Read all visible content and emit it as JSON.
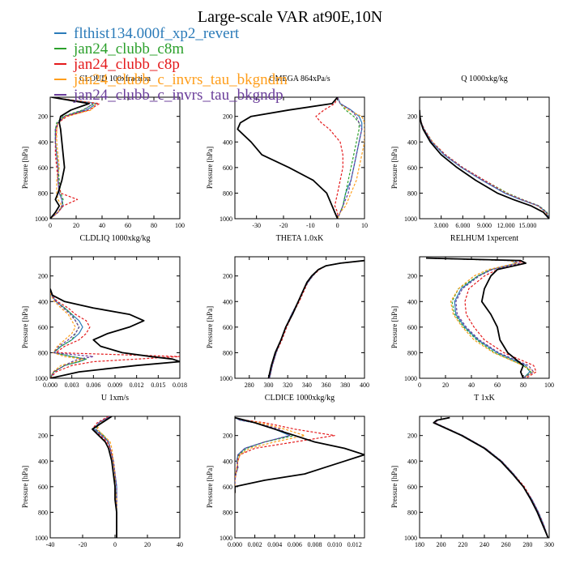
{
  "title": "Large-scale VAR at90E,10N",
  "legend": [
    {
      "name": "flthist134.000f_xp2_revert",
      "color": "#2b7bb9",
      "dash": "solid"
    },
    {
      "name": "jan24_clubb_c8m",
      "color": "#2ca02c",
      "dash": "dash"
    },
    {
      "name": "jan24_clubb_c8p",
      "color": "#e41a1c",
      "dash": "dash"
    },
    {
      "name": "jan24_clubb_c_invrs_tau_bkgndm",
      "color": "#ff9e1b",
      "dash": "dash"
    },
    {
      "name": "jan24_clubb_c_invrs_tau_bkgndp",
      "color": "#6a3d9a",
      "dash": "dash"
    }
  ],
  "reference_series": {
    "color": "#000000",
    "dash": "solid"
  },
  "ylabel": "Pressure [hPa]",
  "yticks": [
    "200",
    "400",
    "600",
    "800",
    "1000"
  ],
  "chart_data": [
    {
      "type": "line",
      "title": "CLOUD  100xfraction",
      "xlim": [
        0,
        100
      ],
      "ylim": [
        50,
        1000
      ],
      "xticks": [
        0,
        20,
        40,
        60,
        80,
        100
      ],
      "xtick_labels": [
        "0",
        "20",
        "40",
        "60",
        "80",
        "100"
      ],
      "pressure": [
        50,
        100,
        150,
        200,
        250,
        300,
        400,
        500,
        600,
        700,
        800,
        850,
        900,
        950,
        1000
      ],
      "reference": [
        1,
        30,
        16,
        8,
        7,
        8,
        9,
        10,
        11,
        9,
        6,
        4,
        7,
        4,
        0
      ],
      "series": [
        [
          1,
          36,
          28,
          11,
          6,
          4,
          4,
          5,
          6,
          6,
          7,
          9,
          10,
          6,
          0
        ],
        [
          1,
          34,
          25,
          10,
          5,
          4,
          4,
          5,
          6,
          7,
          8,
          10,
          9,
          6,
          0
        ],
        [
          1,
          38,
          30,
          13,
          6,
          5,
          4,
          4,
          5,
          6,
          8,
          21,
          10,
          6,
          0
        ],
        [
          1,
          35,
          32,
          12,
          6,
          5,
          5,
          6,
          7,
          5,
          5,
          6,
          9,
          6,
          0
        ],
        [
          1,
          33,
          26,
          11,
          6,
          4,
          4,
          5,
          6,
          6,
          7,
          9,
          9,
          6,
          0
        ]
      ]
    },
    {
      "type": "line",
      "title": "OMEGA  864xPa/s",
      "xlim": [
        -38,
        10
      ],
      "ylim": [
        50,
        1000
      ],
      "xticks": [
        -30,
        -20,
        -10,
        0,
        10
      ],
      "xtick_labels": [
        "-30",
        "-20",
        "-10",
        "0",
        "10"
      ],
      "pressure": [
        50,
        100,
        150,
        200,
        250,
        300,
        400,
        500,
        600,
        700,
        800,
        900,
        950,
        1000
      ],
      "reference": [
        0,
        -2,
        -18,
        -32,
        -36,
        -37,
        -32,
        -28,
        -18,
        -9,
        -4,
        -2,
        -1,
        0
      ],
      "series": [
        [
          0,
          1,
          5,
          8,
          9,
          9,
          8,
          7,
          6,
          5,
          3,
          2,
          1,
          0
        ],
        [
          0,
          1,
          3,
          6,
          8,
          8,
          7,
          6,
          5,
          4,
          3,
          2,
          1,
          0
        ],
        [
          0,
          -1,
          -5,
          -8,
          -6,
          -3,
          1,
          2,
          2,
          1,
          0,
          -1,
          0,
          0
        ],
        [
          0,
          1,
          4,
          9,
          10,
          10,
          10,
          9,
          8,
          7,
          5,
          3,
          1,
          0
        ],
        [
          0,
          1,
          5,
          7,
          8,
          9,
          8,
          7,
          6,
          5,
          4,
          2,
          1,
          0
        ]
      ]
    },
    {
      "type": "line",
      "title": "Q  1000xkg/kg",
      "xlim": [
        0,
        18000
      ],
      "ylim": [
        50,
        1000
      ],
      "xticks": [
        3000,
        6000,
        9000,
        12000,
        15000
      ],
      "xtick_labels": [
        "3.000",
        "6.000",
        "9.000",
        "12.000",
        "15.000"
      ],
      "pressure": [
        150,
        200,
        250,
        300,
        400,
        500,
        600,
        700,
        800,
        850,
        900,
        950,
        1000
      ],
      "reference": [
        0,
        50,
        200,
        500,
        1500,
        3000,
        5200,
        7800,
        10800,
        13000,
        15500,
        17200,
        18000
      ],
      "series": [
        [
          0,
          60,
          250,
          600,
          1700,
          3400,
          5800,
          8700,
          11800,
          14000,
          16500,
          17600,
          18000
        ],
        [
          0,
          60,
          250,
          650,
          1800,
          3600,
          6000,
          9000,
          12200,
          14300,
          16600,
          17700,
          18000
        ],
        [
          0,
          60,
          260,
          650,
          1800,
          3600,
          6000,
          9000,
          12000,
          14200,
          16500,
          17600,
          18000
        ],
        [
          0,
          60,
          250,
          600,
          1800,
          3500,
          5900,
          8800,
          12000,
          14100,
          16400,
          17500,
          18000
        ],
        [
          0,
          60,
          250,
          600,
          1700,
          3500,
          5900,
          8800,
          11900,
          14100,
          16500,
          17600,
          18000
        ]
      ]
    },
    {
      "type": "line",
      "title": "CLDLIQ  1000xkg/kg",
      "xlim": [
        0,
        0.018
      ],
      "ylim": [
        50,
        1000
      ],
      "xticks": [
        0,
        0.003,
        0.006,
        0.009,
        0.012,
        0.015,
        0.018
      ],
      "xtick_labels": [
        "0.000",
        "0.003",
        "0.006",
        "0.009",
        "0.012",
        "0.015",
        "0.018"
      ],
      "pressure": [
        300,
        350,
        400,
        450,
        500,
        550,
        600,
        650,
        700,
        750,
        800,
        830,
        850,
        870,
        900,
        950,
        1000
      ],
      "reference": [
        0,
        0.0003,
        0.002,
        0.006,
        0.011,
        0.013,
        0.011,
        0.008,
        0.006,
        0.007,
        0.01,
        0.014,
        0.017,
        0.018,
        0.012,
        0.004,
        0
      ],
      "series": [
        [
          0,
          0.0002,
          0.0008,
          0.002,
          0.003,
          0.004,
          0.0045,
          0.004,
          0.003,
          0.0015,
          0.0005,
          0.003,
          0.005,
          0.004,
          0.002,
          0.0005,
          0
        ],
        [
          0,
          0.0002,
          0.0008,
          0.002,
          0.003,
          0.0035,
          0.004,
          0.0035,
          0.003,
          0.0015,
          0.0005,
          0.003,
          0.005,
          0.004,
          0.002,
          0.0005,
          0
        ],
        [
          0,
          0.0002,
          0.001,
          0.0025,
          0.0035,
          0.005,
          0.0055,
          0.005,
          0.004,
          0.002,
          0.0008,
          0.018,
          0.012,
          0.006,
          0.003,
          0.0008,
          0
        ],
        [
          0,
          0.0001,
          0.0006,
          0.0015,
          0.0025,
          0.003,
          0.0035,
          0.003,
          0.002,
          0.001,
          0.0004,
          0.002,
          0.0045,
          0.0035,
          0.0015,
          0.0004,
          0
        ],
        [
          0,
          0.0002,
          0.0008,
          0.0018,
          0.0028,
          0.0035,
          0.004,
          0.0035,
          0.0025,
          0.0012,
          0.0005,
          0.006,
          0.004,
          0.003,
          0.002,
          0.0005,
          0
        ]
      ]
    },
    {
      "type": "line",
      "title": "THETA  1.0xK",
      "xlim": [
        265,
        400
      ],
      "ylim": [
        50,
        1000
      ],
      "xticks": [
        280,
        300,
        320,
        340,
        360,
        380,
        400
      ],
      "xtick_labels": [
        "280",
        "300",
        "320",
        "340",
        "360",
        "380",
        "400"
      ],
      "pressure": [
        80,
        100,
        120,
        150,
        200,
        250,
        300,
        400,
        500,
        600,
        700,
        800,
        900,
        1000
      ],
      "reference": [
        400,
        375,
        360,
        352,
        345,
        340,
        337,
        331,
        325,
        318,
        313,
        307,
        303,
        300
      ],
      "series": [
        [
          400,
          375,
          360,
          352,
          346,
          341,
          337,
          331,
          324,
          318,
          313,
          308,
          304,
          301
        ],
        [
          400,
          375,
          360,
          352,
          346,
          341,
          337,
          331,
          324,
          318,
          313,
          308,
          304,
          301
        ],
        [
          400,
          375,
          360,
          353,
          346,
          341,
          338,
          332,
          325,
          319,
          314,
          308,
          304,
          301
        ],
        [
          400,
          375,
          360,
          352,
          346,
          341,
          337,
          331,
          324,
          318,
          313,
          308,
          304,
          301
        ],
        [
          400,
          375,
          360,
          352,
          346,
          341,
          337,
          331,
          324,
          318,
          313,
          308,
          304,
          301
        ]
      ]
    },
    {
      "type": "line",
      "title": "RELHUM  1xpercent",
      "xlim": [
        0,
        100
      ],
      "ylim": [
        50,
        1000
      ],
      "xticks": [
        0,
        20,
        40,
        60,
        80,
        100
      ],
      "xtick_labels": [
        "0",
        "20",
        "40",
        "60",
        "80",
        "100"
      ],
      "pressure": [
        60,
        80,
        100,
        150,
        200,
        300,
        400,
        500,
        600,
        700,
        800,
        900,
        950,
        1000
      ],
      "reference": [
        5,
        78,
        82,
        60,
        55,
        50,
        48,
        55,
        60,
        62,
        68,
        80,
        78,
        80
      ],
      "series": [
        [
          5,
          70,
          75,
          55,
          45,
          32,
          27,
          28,
          35,
          45,
          60,
          82,
          85,
          80
        ],
        [
          5,
          70,
          75,
          55,
          45,
          30,
          25,
          27,
          34,
          44,
          58,
          80,
          86,
          80
        ],
        [
          5,
          75,
          80,
          60,
          50,
          38,
          35,
          36,
          42,
          50,
          65,
          88,
          90,
          82
        ],
        [
          5,
          70,
          75,
          53,
          42,
          30,
          24,
          26,
          33,
          42,
          57,
          80,
          88,
          80
        ],
        [
          5,
          72,
          77,
          56,
          46,
          33,
          28,
          29,
          36,
          46,
          61,
          84,
          88,
          80
        ]
      ]
    },
    {
      "type": "line",
      "title": "U  1xm/s",
      "xlim": [
        -40,
        40
      ],
      "ylim": [
        50,
        1000
      ],
      "xticks": [
        -40,
        -20,
        0,
        20,
        40
      ],
      "xtick_labels": [
        "-40",
        "-20",
        "0",
        "20",
        "40"
      ],
      "pressure": [
        50,
        100,
        150,
        200,
        250,
        300,
        400,
        500,
        600,
        700,
        800,
        900,
        1000
      ],
      "reference": [
        -2,
        -8,
        -14,
        -10,
        -6,
        -4,
        -2,
        -1,
        0,
        0,
        1,
        1,
        1
      ],
      "series": [
        [
          -3,
          -10,
          -13,
          -8,
          -4,
          -3,
          -1,
          0,
          1,
          1,
          1,
          1,
          1
        ],
        [
          -3,
          -9,
          -12,
          -7,
          -4,
          -3,
          -1,
          0,
          0,
          1,
          1,
          1,
          1
        ],
        [
          -4,
          -11,
          -14,
          -9,
          -5,
          -3,
          -1,
          0,
          0,
          0,
          1,
          1,
          1
        ],
        [
          -3,
          -9,
          -11,
          -7,
          -3,
          -2,
          -1,
          0,
          0,
          1,
          1,
          1,
          1
        ],
        [
          -3,
          -10,
          -12,
          -8,
          -4,
          -3,
          -1,
          0,
          1,
          1,
          1,
          1,
          1
        ]
      ]
    },
    {
      "type": "line",
      "title": "CLDICE  1000xkg/kg",
      "xlim": [
        0,
        0.013
      ],
      "ylim": [
        50,
        1000
      ],
      "xticks": [
        0,
        0.002,
        0.004,
        0.006,
        0.008,
        0.01,
        0.012
      ],
      "xtick_labels": [
        "0.000",
        "0.002",
        "0.004",
        "0.006",
        "0.008",
        "0.010",
        "0.012"
      ],
      "pressure": [
        60,
        80,
        100,
        150,
        200,
        250,
        300,
        350,
        400,
        450,
        500,
        550,
        600,
        650
      ],
      "reference": [
        0,
        0.001,
        0.002,
        0.004,
        0.006,
        0.008,
        0.011,
        0.013,
        0.011,
        0.009,
        0.007,
        0.003,
        0,
        0
      ],
      "series": [
        [
          0,
          0.0005,
          0.002,
          0.004,
          0.0055,
          0.003,
          0.001,
          0.0003,
          0.0002,
          0.0003,
          0.0001,
          0,
          0,
          0
        ],
        [
          0,
          0.0005,
          0.002,
          0.004,
          0.006,
          0.003,
          0.0012,
          0.0004,
          0.0002,
          0.0003,
          0.0001,
          0,
          0,
          0
        ],
        [
          0,
          0.001,
          0.003,
          0.006,
          0.01,
          0.006,
          0.002,
          0.0005,
          0.0003,
          0.0002,
          0.0001,
          0,
          0,
          0
        ],
        [
          0,
          0.0008,
          0.0025,
          0.005,
          0.007,
          0.004,
          0.0015,
          0.0005,
          0.0003,
          0.0002,
          0.0001,
          0,
          0,
          0
        ],
        [
          0,
          0.0005,
          0.002,
          0.0045,
          0.0055,
          0.003,
          0.001,
          0.0003,
          0.0002,
          0.0003,
          0.0001,
          0,
          0,
          0
        ]
      ]
    },
    {
      "type": "line",
      "title": "T  1xK",
      "xlim": [
        180,
        300
      ],
      "ylim": [
        50,
        1000
      ],
      "xticks": [
        180,
        200,
        220,
        240,
        260,
        280,
        300
      ],
      "xtick_labels": [
        "180",
        "200",
        "220",
        "240",
        "260",
        "280",
        "300"
      ],
      "pressure": [
        60,
        80,
        100,
        150,
        200,
        300,
        400,
        500,
        600,
        700,
        800,
        900,
        1000
      ],
      "reference": [
        208,
        196,
        193,
        206,
        219,
        240,
        255,
        266,
        276,
        283,
        289,
        294,
        299
      ],
      "series": [
        [
          207,
          197,
          194,
          207,
          220,
          241,
          256,
          267,
          276,
          284,
          290,
          295,
          299
        ],
        [
          207,
          197,
          194,
          207,
          220,
          241,
          256,
          267,
          276,
          284,
          290,
          295,
          299
        ],
        [
          207,
          197,
          194,
          207,
          220,
          241,
          256,
          267,
          277,
          284,
          290,
          295,
          299
        ],
        [
          207,
          197,
          194,
          207,
          220,
          241,
          256,
          267,
          276,
          284,
          290,
          295,
          299
        ],
        [
          207,
          197,
          194,
          207,
          220,
          241,
          256,
          267,
          276,
          284,
          290,
          295,
          299
        ]
      ]
    }
  ]
}
